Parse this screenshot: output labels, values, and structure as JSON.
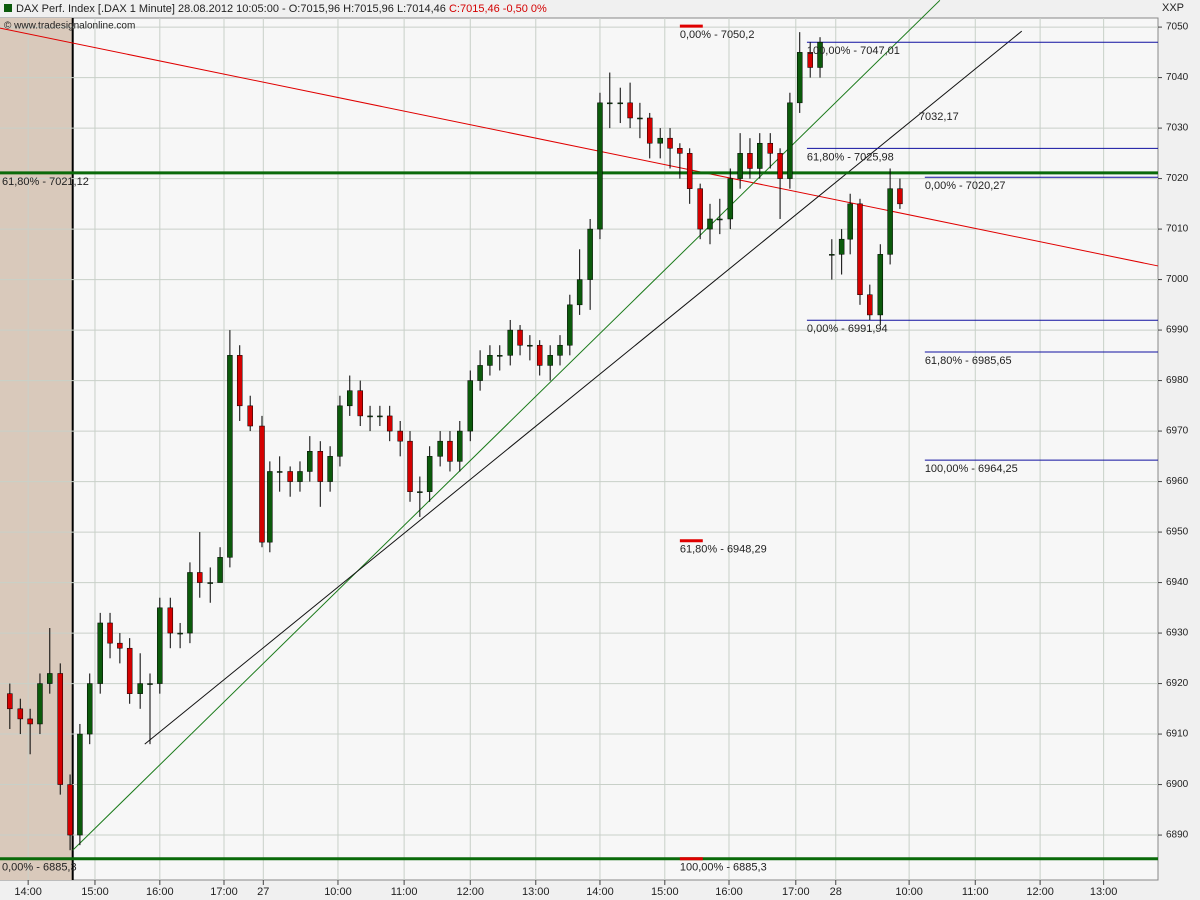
{
  "chart_data": {
    "type": "candlestick",
    "title": "DAX Perf. Index [.DAX  1 Minute] 28.08.2012 10:05:00 - O:7015,96 H:7015,96 L:7014,46",
    "title_change": "C:7015,46 -0,50 0%",
    "copyright": "© www.tradesignalonline.com",
    "symbol_badge": "XXP",
    "x": [
      0.15,
      0.31,
      0.46,
      0.61,
      0.76,
      0.92,
      1.07,
      1.22,
      1.37,
      1.53,
      1.68,
      1.83,
      1.98,
      2.14,
      2.29,
      2.44,
      2.6,
      2.75,
      2.9,
      3.05,
      3.21,
      3.36,
      3.51,
      3.66,
      3.82,
      4.0,
      4.12,
      4.27,
      4.43,
      4.58,
      4.73,
      4.89,
      5.04,
      5.19,
      5.34,
      5.5,
      5.65,
      5.8,
      5.95,
      6.11,
      6.26,
      6.41,
      6.56,
      6.72,
      6.87,
      7.02,
      7.18,
      7.33,
      7.48,
      7.63,
      7.79,
      7.94,
      8.09,
      8.24,
      8.4,
      8.55,
      8.7,
      8.85,
      9.01,
      9.16,
      9.31,
      9.47,
      9.62,
      9.77,
      9.92,
      10.08,
      10.23,
      10.38,
      10.53,
      10.69,
      10.84,
      10.99,
      11.15,
      11.3,
      11.45,
      11.6,
      11.76,
      11.91,
      12.06,
      12.21,
      12.37,
      12.52,
      12.7,
      12.85,
      12.98,
      13.13,
      13.28,
      13.44,
      13.59,
      13.74
    ],
    "open": [
      6918,
      6915,
      6913,
      6912,
      6920,
      6922,
      6900,
      6890,
      6910,
      6920,
      6932,
      6928,
      6927,
      6918,
      6920,
      6920,
      6935,
      6930,
      6930,
      6942,
      6940,
      6940,
      6945,
      6985,
      6975,
      6971,
      6948,
      6962,
      6962,
      6960,
      6962,
      6966,
      6960,
      6965,
      6975,
      6978,
      6973,
      6973,
      6973,
      6970,
      6968,
      6958,
      6958,
      6965,
      6968,
      6964,
      6970,
      6980,
      6983,
      6985,
      6985,
      6990,
      6987,
      6987,
      6983,
      6985,
      6987,
      6995,
      7000,
      7010,
      7035,
      7035,
      7035,
      7032,
      7032,
      7027,
      7028,
      7026,
      7025,
      7018,
      7010,
      7012,
      7012,
      7020,
      7025,
      7022,
      7027,
      7025,
      7020,
      7035,
      7045,
      7042,
      7005,
      7005,
      7008,
      7015,
      6997,
      6993,
      7005,
      7018
    ],
    "high": [
      6920,
      6917,
      6915,
      6922,
      6931,
      6924,
      6902,
      6912,
      6922,
      6934,
      6934,
      6930,
      6929,
      6926,
      6922,
      6937,
      6937,
      6932,
      6944,
      6950,
      6943,
      6947,
      6990,
      6987,
      6977,
      6973,
      6964,
      6965,
      6963,
      6964,
      6969,
      6968,
      6967,
      6977,
      6981,
      6980,
      6975,
      6975,
      6975,
      6972,
      6970,
      6961,
      6967,
      6970,
      6970,
      6972,
      6982,
      6986,
      6987,
      6987,
      6992,
      6991,
      6989,
      6988,
      6987,
      6989,
      6997,
      7006,
      7012,
      7037,
      7041,
      7038,
      7039,
      7035,
      7033,
      7030,
      7030,
      7027,
      7026,
      7019,
      7015,
      7016,
      7022,
      7029,
      7028,
      7029,
      7029,
      7026,
      7037,
      7049,
      7047,
      7048,
      7008,
      7010,
      7017,
      7016,
      6999,
      7007,
      7022,
      7020
    ],
    "low": [
      6911,
      6910,
      6906,
      6910,
      6918,
      6898,
      6887,
      6888,
      6908,
      6918,
      6925,
      6924,
      6916,
      6915,
      6908,
      6918,
      6927,
      6927,
      6928,
      6937,
      6936,
      6941,
      6943,
      6972,
      6970,
      6947,
      6946,
      6958,
      6957,
      6958,
      6960,
      6955,
      6958,
      6963,
      6973,
      6971,
      6970,
      6971,
      6968,
      6965,
      6956,
      6953,
      6956,
      6963,
      6962,
      6962,
      6968,
      6978,
      6981,
      6982,
      6983,
      6985,
      6984,
      6981,
      6980,
      6983,
      6985,
      6993,
      6994,
      7008,
      7030,
      7031,
      7030,
      7028,
      7024,
      7024,
      7022,
      7020,
      7015,
      7008,
      7007,
      7009,
      7010,
      7018,
      7020,
      7020,
      7022,
      7012,
      7018,
      7033,
      7040,
      7040,
      7000,
      7001,
      7005,
      6995,
      6992,
      6991,
      7003,
      7014
    ],
    "close": [
      6915,
      6913,
      6912,
      6920,
      6922,
      6900,
      6890,
      6910,
      6920,
      6932,
      6928,
      6927,
      6918,
      6920,
      6920,
      6935,
      6930,
      6930,
      6942,
      6940,
      6940,
      6945,
      6985,
      6975,
      6971,
      6948,
      6962,
      6962,
      6960,
      6962,
      6966,
      6960,
      6965,
      6975,
      6978,
      6973,
      6973,
      6973,
      6970,
      6968,
      6958,
      6958,
      6965,
      6968,
      6964,
      6970,
      6980,
      6983,
      6985,
      6985,
      6990,
      6987,
      6987,
      6983,
      6985,
      6987,
      6995,
      7000,
      7010,
      7035,
      7035,
      7035,
      7032,
      7032,
      7027,
      7028,
      7026,
      7025,
      7018,
      7010,
      7012,
      7012,
      7020,
      7025,
      7022,
      7027,
      7025,
      7020,
      7035,
      7045,
      7042,
      7047,
      7005,
      7008,
      7015,
      6997,
      6993,
      7005,
      7018,
      7015
    ],
    "up_color": "#0b5a0b",
    "down_color": "#d40000",
    "xlim": [
      0,
      17.68
    ],
    "xticks": [
      {
        "value": 0.43,
        "label": "14:00"
      },
      {
        "value": 1.45,
        "label": "15:00"
      },
      {
        "value": 2.44,
        "label": "16:00"
      },
      {
        "value": 3.42,
        "label": "17:00"
      },
      {
        "value": 4.02,
        "label": "27"
      },
      {
        "value": 5.16,
        "label": "10:00"
      },
      {
        "value": 6.17,
        "label": "11:00"
      },
      {
        "value": 7.18,
        "label": "12:00"
      },
      {
        "value": 8.18,
        "label": "13:00"
      },
      {
        "value": 9.16,
        "label": "14:00"
      },
      {
        "value": 10.15,
        "label": "15:00"
      },
      {
        "value": 11.13,
        "label": "16:00"
      },
      {
        "value": 12.15,
        "label": "17:00"
      },
      {
        "value": 12.76,
        "label": "28"
      },
      {
        "value": 13.88,
        "label": "10:00"
      },
      {
        "value": 14.89,
        "label": "11:00"
      },
      {
        "value": 15.88,
        "label": "12:00"
      },
      {
        "value": 16.85,
        "label": "13:00"
      }
    ],
    "ylim": [
      6881.1,
      7051.8
    ],
    "yticks": [
      6890,
      6900,
      6910,
      6920,
      6930,
      6940,
      6950,
      6960,
      6970,
      6980,
      6990,
      7000,
      7010,
      7020,
      7030,
      7040,
      7050
    ],
    "grid": true,
    "session_shade": {
      "x": [
        0,
        1.11
      ],
      "color": "#d9c9bb"
    },
    "hlines": [
      {
        "value": 7021.12,
        "label": "61,80% - 7021,12",
        "color": "#0a6a0a"
      },
      {
        "value": 6885.3,
        "label": "0,00% - 6885,3",
        "color": "#0a6a0a"
      }
    ],
    "fib_levels": [
      {
        "value": 7050.2,
        "label": "0,00% - 7050,2",
        "color": "#e00000",
        "x": [
          10.38,
          10.73
        ]
      },
      {
        "value": 6948.29,
        "label": "61,80% - 6948,29",
        "color": "#e00000",
        "x": [
          10.38,
          10.73
        ]
      },
      {
        "value": 6885.3,
        "label": "100,00% - 6885,3",
        "color": "#e00000",
        "x": [
          10.38,
          10.73
        ]
      },
      {
        "value": 7047.01,
        "label": "100,00% - 7047,01",
        "color": "#1010a0",
        "x": [
          12.32,
          17.68
        ]
      },
      {
        "value": 7025.98,
        "label": "61,80% - 7025,98",
        "color": "#1010a0",
        "x": [
          12.32,
          17.68
        ]
      },
      {
        "value": 6991.94,
        "label": "0,00% - 6991,94",
        "color": "#1010a0",
        "x": [
          12.32,
          17.68
        ]
      },
      {
        "value": 7020.27,
        "label": "0,00% - 7020,27",
        "color": "#1010a0",
        "x": [
          14.12,
          17.68
        ]
      },
      {
        "value": 6985.65,
        "label": "61,80% - 6985,65",
        "color": "#1010a0",
        "x": [
          14.12,
          17.68
        ]
      },
      {
        "value": 6964.25,
        "label": "100,00% - 6964,25",
        "color": "#1010a0",
        "x": [
          14.12,
          17.68
        ]
      }
    ],
    "trendlines": [
      {
        "color": "#e00000",
        "x": [
          0,
          17.68
        ],
        "y": [
          7049.8,
          7002.7
        ]
      },
      {
        "color": "#1a7a1a",
        "x": [
          1.11,
          14.35
        ],
        "y": [
          6887,
          7055.3
        ]
      },
      {
        "color": "#111111",
        "x": [
          2.21,
          15.6
        ],
        "y": [
          6908,
          7049.2
        ]
      }
    ],
    "price_note": {
      "label": "7032,17",
      "value": 7032.17,
      "x": 14.03
    }
  }
}
